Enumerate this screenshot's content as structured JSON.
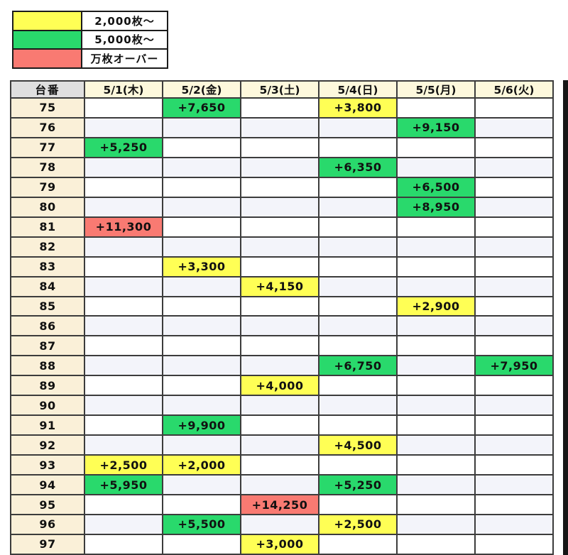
{
  "chart_data": {
    "type": "table",
    "corner_header": "台番",
    "date_headers": [
      "5/1(木)",
      "5/2(金)",
      "5/3(土)",
      "5/4(日)",
      "5/5(月)",
      "5/6(火)"
    ],
    "legend": [
      {
        "level": "yellow",
        "label": "2,000枚～"
      },
      {
        "level": "green",
        "label": "5,000枚～"
      },
      {
        "level": "red",
        "label": "万枚オーバー"
      }
    ],
    "colors": {
      "yellow": "#FFFF55",
      "green": "#29D96C",
      "red": "#F97A72"
    },
    "rows": [
      {
        "machine": "75",
        "cells": [
          null,
          {
            "value": "+7,650",
            "level": "green"
          },
          null,
          {
            "value": "+3,800",
            "level": "yellow"
          },
          null,
          null
        ]
      },
      {
        "machine": "76",
        "cells": [
          null,
          null,
          null,
          null,
          {
            "value": "+9,150",
            "level": "green"
          },
          null
        ]
      },
      {
        "machine": "77",
        "cells": [
          {
            "value": "+5,250",
            "level": "green"
          },
          null,
          null,
          null,
          null,
          null
        ]
      },
      {
        "machine": "78",
        "cells": [
          null,
          null,
          null,
          {
            "value": "+6,350",
            "level": "green"
          },
          null,
          null
        ]
      },
      {
        "machine": "79",
        "cells": [
          null,
          null,
          null,
          null,
          {
            "value": "+6,500",
            "level": "green"
          },
          null
        ]
      },
      {
        "machine": "80",
        "cells": [
          null,
          null,
          null,
          null,
          {
            "value": "+8,950",
            "level": "green"
          },
          null
        ]
      },
      {
        "machine": "81",
        "cells": [
          {
            "value": "+11,300",
            "level": "red"
          },
          null,
          null,
          null,
          null,
          null
        ]
      },
      {
        "machine": "82",
        "cells": [
          null,
          null,
          null,
          null,
          null,
          null
        ]
      },
      {
        "machine": "83",
        "cells": [
          null,
          {
            "value": "+3,300",
            "level": "yellow"
          },
          null,
          null,
          null,
          null
        ]
      },
      {
        "machine": "84",
        "cells": [
          null,
          null,
          {
            "value": "+4,150",
            "level": "yellow"
          },
          null,
          null,
          null
        ]
      },
      {
        "machine": "85",
        "cells": [
          null,
          null,
          null,
          null,
          {
            "value": "+2,900",
            "level": "yellow"
          },
          null
        ]
      },
      {
        "machine": "86",
        "cells": [
          null,
          null,
          null,
          null,
          null,
          null
        ]
      },
      {
        "machine": "87",
        "cells": [
          null,
          null,
          null,
          null,
          null,
          null
        ]
      },
      {
        "machine": "88",
        "cells": [
          null,
          null,
          null,
          {
            "value": "+6,750",
            "level": "green"
          },
          null,
          {
            "value": "+7,950",
            "level": "green"
          }
        ]
      },
      {
        "machine": "89",
        "cells": [
          null,
          null,
          {
            "value": "+4,000",
            "level": "yellow"
          },
          null,
          null,
          null
        ]
      },
      {
        "machine": "90",
        "cells": [
          null,
          null,
          null,
          null,
          null,
          null
        ]
      },
      {
        "machine": "91",
        "cells": [
          null,
          {
            "value": "+9,900",
            "level": "green"
          },
          null,
          null,
          null,
          null
        ]
      },
      {
        "machine": "92",
        "cells": [
          null,
          null,
          null,
          {
            "value": "+4,500",
            "level": "yellow"
          },
          null,
          null
        ]
      },
      {
        "machine": "93",
        "cells": [
          {
            "value": "+2,500",
            "level": "yellow"
          },
          {
            "value": "+2,000",
            "level": "yellow"
          },
          null,
          null,
          null,
          null
        ]
      },
      {
        "machine": "94",
        "cells": [
          {
            "value": "+5,950",
            "level": "green"
          },
          null,
          null,
          {
            "value": "+5,250",
            "level": "green"
          },
          null,
          null
        ]
      },
      {
        "machine": "95",
        "cells": [
          null,
          null,
          {
            "value": "+14,250",
            "level": "red"
          },
          null,
          null,
          null
        ]
      },
      {
        "machine": "96",
        "cells": [
          null,
          {
            "value": "+5,500",
            "level": "green"
          },
          null,
          {
            "value": "+2,500",
            "level": "yellow"
          },
          null,
          null
        ]
      },
      {
        "machine": "97",
        "cells": [
          null,
          null,
          {
            "value": "+3,000",
            "level": "yellow"
          },
          null,
          null,
          null
        ]
      }
    ]
  },
  "ui_colors": {
    "header_gray": "#DFDFDF",
    "date_header_cream": "#FDF8DC",
    "machine_cell_cream": "#FAF0D8",
    "row_alt": "#F3F4FA",
    "grid_border": "#3C3C3C",
    "edge_bar": "#161616"
  }
}
